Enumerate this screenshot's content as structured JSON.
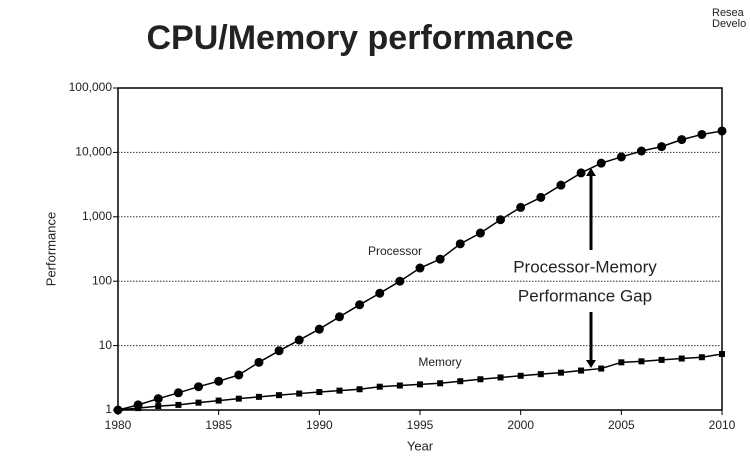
{
  "title": "CPU/Memory performance",
  "logo": [
    "Resea",
    "Develo"
  ],
  "chart_data": {
    "type": "line",
    "x_label": "Year",
    "y_label": "Performance",
    "log_scale_y": true,
    "grid": true,
    "x": [
      1980,
      1981,
      1982,
      1983,
      1984,
      1985,
      1986,
      1987,
      1988,
      1989,
      1990,
      1991,
      1992,
      1993,
      1994,
      1995,
      1996,
      1997,
      1998,
      1999,
      2000,
      2001,
      2002,
      2003,
      2004,
      2005,
      2006,
      2007,
      2008,
      2009,
      2010
    ],
    "series": [
      {
        "name": "Processor",
        "color": "#000000",
        "marker": "circle",
        "values": [
          1,
          1.2,
          1.5,
          1.85,
          2.3,
          2.8,
          3.5,
          5.5,
          8.3,
          12.2,
          18,
          28,
          43,
          65,
          100,
          160,
          220,
          380,
          560,
          900,
          1400,
          2000,
          3100,
          4800,
          6800,
          8500,
          10500,
          12300,
          15800,
          19000,
          21500
        ]
      },
      {
        "name": "Memory",
        "color": "#000000",
        "marker": "square",
        "values": [
          1,
          1.07,
          1.15,
          1.2,
          1.3,
          1.4,
          1.5,
          1.6,
          1.7,
          1.8,
          1.9,
          2,
          2.1,
          2.3,
          2.4,
          2.5,
          2.6,
          2.8,
          3,
          3.2,
          3.4,
          3.6,
          3.8,
          4.1,
          4.4,
          5.5,
          5.7,
          6,
          6.3,
          6.6,
          7.4
        ]
      }
    ],
    "annotations": [
      "Processor-Memory",
      "Performance Gap"
    ],
    "xlim": [
      1980,
      2010
    ],
    "xticks": [
      1980,
      1985,
      1990,
      1995,
      2000,
      2005,
      2010
    ],
    "ylim": [
      1,
      100000
    ],
    "yticks": [
      1,
      10,
      100,
      {
        "value": 1000,
        "label": "1,000"
      },
      {
        "value": 10000,
        "label": "10,000"
      },
      {
        "value": 100000,
        "label": "100,000"
      }
    ]
  }
}
